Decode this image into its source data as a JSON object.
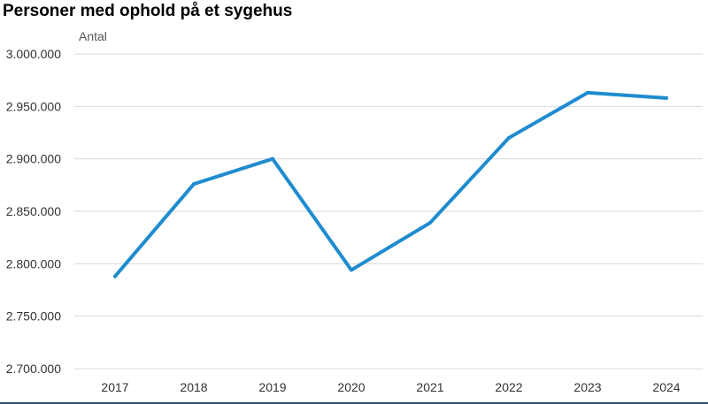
{
  "chart_data": {
    "type": "line",
    "title": "Personer med ophold på et sygehus",
    "ylabel": "Antal",
    "xlabel": "",
    "categories": [
      "2017",
      "2018",
      "2019",
      "2020",
      "2021",
      "2022",
      "2023",
      "2024"
    ],
    "series": [
      {
        "name": "Personer med ophold på et sygehus",
        "values": [
          2788000,
          2876000,
          2900000,
          2794000,
          2839000,
          2920000,
          2963000,
          2958000
        ]
      }
    ],
    "ylim": [
      2700000,
      3000000
    ],
    "yticks": [
      2700000,
      2750000,
      2800000,
      2850000,
      2900000,
      2950000,
      3000000
    ],
    "ytick_labels": [
      "2.700.000",
      "2.750.000",
      "2.800.000",
      "2.850.000",
      "2.900.000",
      "2.950.000",
      "3.000.000"
    ],
    "grid": "horizontal",
    "line_color": "#1e8ccf",
    "grid_color": "#d9d9d9"
  }
}
